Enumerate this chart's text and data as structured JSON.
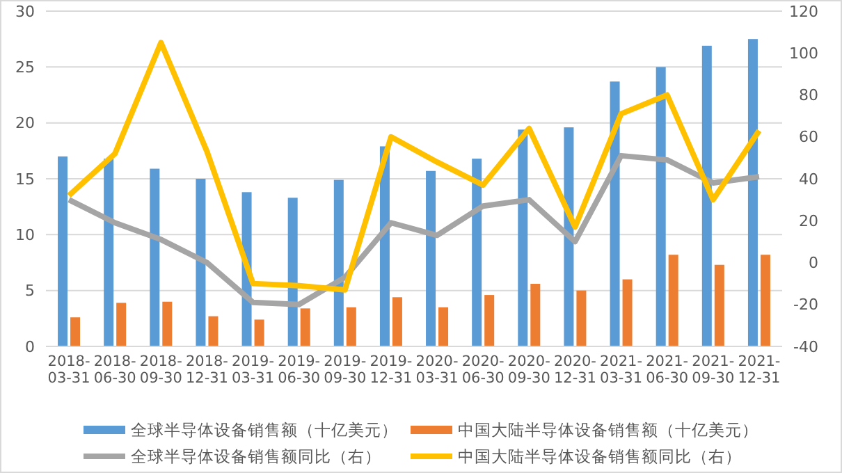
{
  "chart_data": {
    "type": "bar",
    "categories": [
      "2018-03-31",
      "2018-06-30",
      "2018-09-30",
      "2018-12-31",
      "2019-03-31",
      "2019-06-30",
      "2019-09-30",
      "2019-12-31",
      "2020-03-31",
      "2020-06-30",
      "2020-09-30",
      "2020-12-31",
      "2021-03-31",
      "2021-06-30",
      "2021-09-30",
      "2021-12-31"
    ],
    "series": [
      {
        "name": "全球半导体设备销售额（十亿美元）",
        "color": "#5b9bd5",
        "values": [
          17.0,
          16.8,
          15.9,
          15.0,
          13.8,
          13.3,
          14.9,
          17.9,
          15.7,
          16.8,
          19.4,
          19.6,
          23.7,
          25.0,
          26.9,
          27.5
        ]
      },
      {
        "name": "中国大陆半导体设备销售额（十亿美元）",
        "color": "#ed7d31",
        "values": [
          2.6,
          3.9,
          4.0,
          2.7,
          2.4,
          3.4,
          3.5,
          4.4,
          3.5,
          4.6,
          5.6,
          5.0,
          6.0,
          8.2,
          7.3,
          8.2
        ]
      },
      {
        "name": "全球半导体设备销售额同比（右）",
        "type": "line",
        "axis": "y2",
        "color": "#a5a5a5",
        "values": [
          30,
          19,
          11,
          0,
          -19,
          -20,
          -7,
          19,
          13,
          27,
          30,
          10,
          51,
          49,
          38,
          41
        ]
      },
      {
        "name": "中国大陆半导体设备销售额同比（右）",
        "type": "line",
        "axis": "y2",
        "color": "#ffc000",
        "values": [
          32,
          52,
          105,
          53,
          -10,
          -11,
          -13,
          60,
          48,
          37,
          64,
          17,
          71,
          80,
          30,
          63
        ]
      }
    ],
    "ylim": [
      0,
      30
    ],
    "yticks": [
      0,
      5,
      10,
      15,
      20,
      25,
      30
    ],
    "y2lim": [
      -40,
      120
    ],
    "y2ticks": [
      -40,
      -20,
      0,
      20,
      40,
      60,
      80,
      100,
      120
    ],
    "grid": "y",
    "legend": "bottom",
    "marker": "none",
    "line_style": "solid"
  }
}
